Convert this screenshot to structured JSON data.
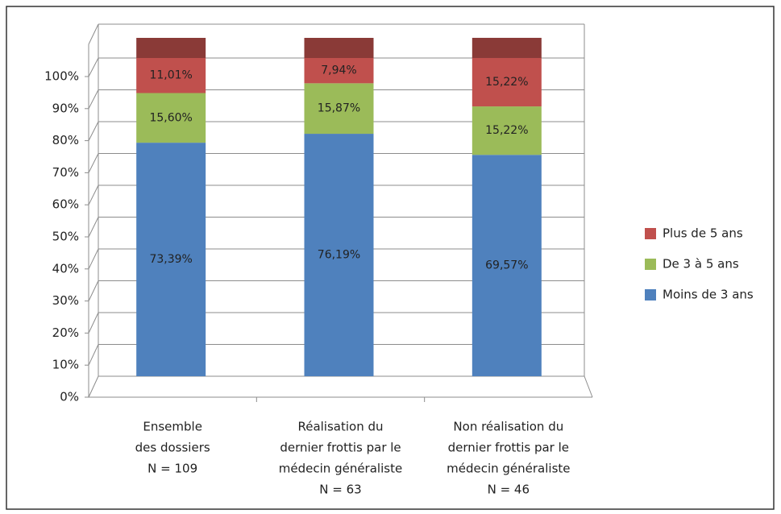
{
  "chart_data": {
    "type": "stacked_bar_3d",
    "categories": [
      [
        "Ensemble",
        "des dossiers",
        "N = 109"
      ],
      [
        "Réalisation du",
        "dernier frottis par le",
        "médecin généraliste",
        "N = 63"
      ],
      [
        "Non réalisation du",
        "dernier frottis par le",
        "médecin généraliste",
        "N = 46"
      ]
    ],
    "series": [
      {
        "name": "Moins de 3 ans",
        "color": "#4f81bd",
        "values": [
          73.39,
          76.19,
          69.57
        ],
        "value_labels": [
          "73,39%",
          "76,19%",
          "69,57%"
        ]
      },
      {
        "name": "De 3 à 5 ans",
        "color": "#9bbb59",
        "values": [
          15.6,
          15.87,
          15.22
        ],
        "value_labels": [
          "15,60%",
          "15,87%",
          "15,22%"
        ]
      },
      {
        "name": "Plus de 5 ans",
        "color": "#c0504d",
        "values": [
          11.01,
          7.94,
          15.22
        ],
        "value_labels": [
          "11,01%",
          "7,94%",
          "15,22%"
        ]
      }
    ],
    "ylim": [
      0,
      100
    ],
    "yticks": [
      {
        "value": 0,
        "label": "0%"
      },
      {
        "value": 10,
        "label": "10%"
      },
      {
        "value": 20,
        "label": "20%"
      },
      {
        "value": 30,
        "label": "30%"
      },
      {
        "value": 40,
        "label": "40%"
      },
      {
        "value": 50,
        "label": "50%"
      },
      {
        "value": 60,
        "label": "60%"
      },
      {
        "value": 70,
        "label": "70%"
      },
      {
        "value": 80,
        "label": "80%"
      },
      {
        "value": 90,
        "label": "90%"
      },
      {
        "value": 100,
        "label": "100%"
      }
    ],
    "grid": true,
    "legend": "right"
  }
}
